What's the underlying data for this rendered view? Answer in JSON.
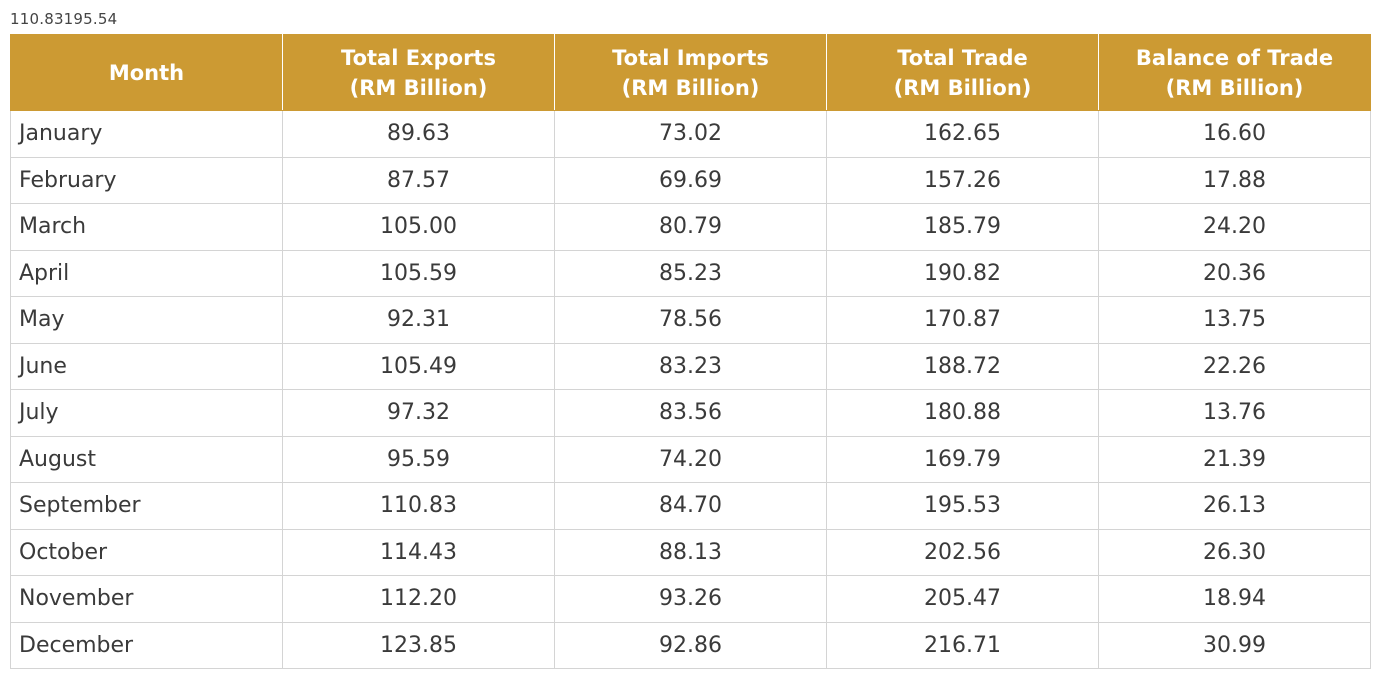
{
  "caption": "110.83195.54",
  "table": {
    "headers": [
      {
        "line1": "Month",
        "line2": ""
      },
      {
        "line1": "Total Exports",
        "line2": "(RM Billion)"
      },
      {
        "line1": "Total Imports",
        "line2": "(RM Billion)"
      },
      {
        "line1": "Total Trade",
        "line2": "(RM Billion)"
      },
      {
        "line1": "Balance of Trade",
        "line2": "(RM Billion)"
      }
    ],
    "rows": [
      [
        "January",
        "89.63",
        "73.02",
        "162.65",
        "16.60"
      ],
      [
        "February",
        "87.57",
        "69.69",
        "157.26",
        "17.88"
      ],
      [
        "March",
        "105.00",
        "80.79",
        "185.79",
        "24.20"
      ],
      [
        "April",
        "105.59",
        "85.23",
        "190.82",
        "20.36"
      ],
      [
        "May",
        "92.31",
        "78.56",
        "170.87",
        "13.75"
      ],
      [
        "June",
        "105.49",
        "83.23",
        "188.72",
        "22.26"
      ],
      [
        "July",
        "97.32",
        "83.56",
        "180.88",
        "13.76"
      ],
      [
        "August",
        "95.59",
        "74.20",
        "169.79",
        "21.39"
      ],
      [
        "September",
        "110.83",
        "84.70",
        "195.53",
        "26.13"
      ],
      [
        "October",
        "114.43",
        "88.13",
        "202.56",
        "26.30"
      ],
      [
        "November",
        "112.20",
        "93.26",
        "205.47",
        "18.94"
      ],
      [
        "December",
        "123.85",
        "92.86",
        "216.71",
        "30.99"
      ]
    ]
  },
  "colors": {
    "header_bg": "#cc9a33",
    "header_text": "#ffffff",
    "cell_text": "#3a3a3a",
    "border": "#d4d4d4"
  }
}
